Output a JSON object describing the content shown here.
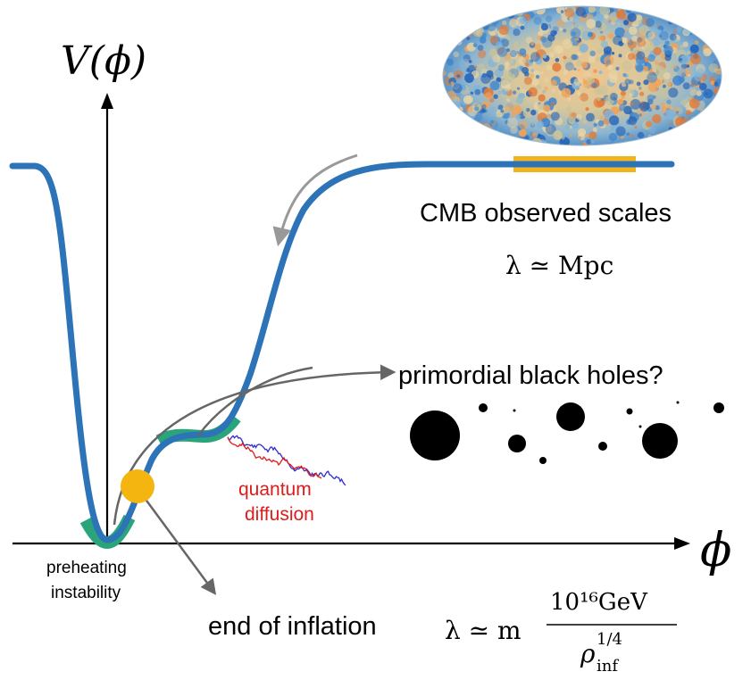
{
  "axes": {
    "y_label": "V(ϕ)",
    "x_label": "ϕ"
  },
  "labels": {
    "cmb_observed_scales": "CMB observed scales",
    "cmb_scale": "λ ≃ Mpc",
    "primordial_black_holes": "primordial black holes?",
    "quantum_diffusion_line1": "quantum",
    "quantum_diffusion_line2": "diffusion",
    "preheating_line1": "preheating",
    "preheating_line2": "instability",
    "end_of_inflation": "end of inflation",
    "eoi_lambda": "λ ≃ m",
    "eoi_numerator": "10¹⁶GeV",
    "eoi_denominator_base": "ρ",
    "eoi_denominator_sup": "1/4",
    "eoi_denominator_sub": "inf"
  },
  "colors": {
    "potential": "#2c73b8",
    "cmb_band": "#f2b31f",
    "highlight": "#2aa57a",
    "end_marker": "#f4b511",
    "arrow": "#666666",
    "diffusion_red": "#e01b1b",
    "diffusion_blue": "#2d2dcc",
    "black_holes": "#000000"
  },
  "icons": {
    "cmb_map": "cmb-sky-map-icon",
    "black_holes": "black-hole-icon"
  }
}
